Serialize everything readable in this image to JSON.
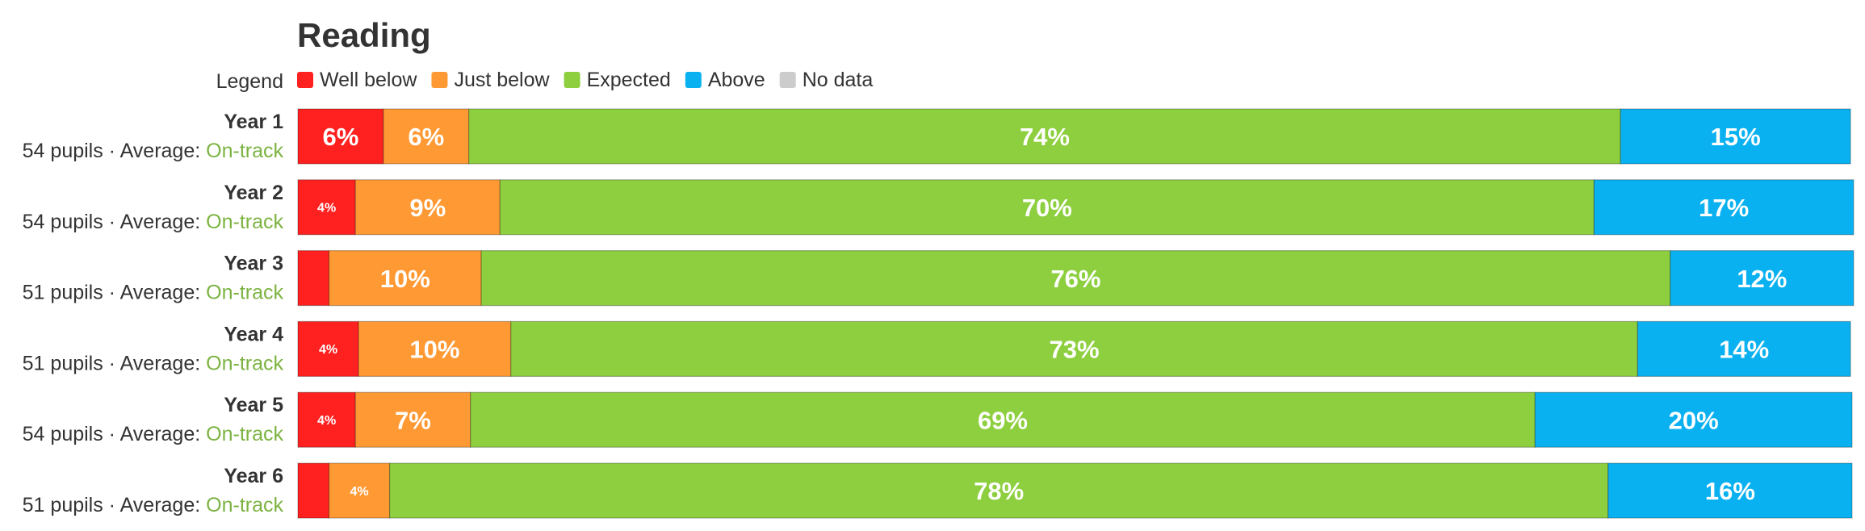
{
  "chart_data": {
    "type": "bar",
    "orientation": "horizontal",
    "stacked": true,
    "title": "Reading",
    "legend_label": "Legend",
    "legend_position": "top-left",
    "categories": [
      "Year 1",
      "Year 2",
      "Year 3",
      "Year 4",
      "Year 5",
      "Year 6"
    ],
    "row_meta": [
      {
        "pupils": "54 pupils",
        "average_label": "Average:",
        "average": "On-track"
      },
      {
        "pupils": "54 pupils",
        "average_label": "Average:",
        "average": "On-track"
      },
      {
        "pupils": "51 pupils",
        "average_label": "Average:",
        "average": "On-track"
      },
      {
        "pupils": "51 pupils",
        "average_label": "Average:",
        "average": "On-track"
      },
      {
        "pupils": "54 pupils",
        "average_label": "Average:",
        "average": "On-track"
      },
      {
        "pupils": "51 pupils",
        "average_label": "Average:",
        "average": "On-track"
      }
    ],
    "series": [
      {
        "name": "Well below",
        "color": "#ff2020",
        "values": [
          5.5,
          3.7,
          2,
          3.9,
          3.7,
          2
        ],
        "labels": [
          "6%",
          "4%",
          "",
          "4%",
          "4%",
          ""
        ]
      },
      {
        "name": "Just below",
        "color": "#ff9933",
        "values": [
          5.5,
          9.3,
          9.8,
          9.8,
          7.4,
          3.9
        ],
        "labels": [
          "6%",
          "9%",
          "10%",
          "10%",
          "7%",
          "4%"
        ]
      },
      {
        "name": "Expected",
        "color": "#8dcf3f",
        "values": [
          74.1,
          70.4,
          76.5,
          72.5,
          68.5,
          78.4
        ],
        "labels": [
          "74%",
          "70%",
          "76%",
          "73%",
          "69%",
          "78%"
        ]
      },
      {
        "name": "Above",
        "color": "#0ab1f0",
        "values": [
          14.8,
          16.7,
          11.8,
          13.7,
          20.4,
          15.7
        ],
        "labels": [
          "15%",
          "17%",
          "12%",
          "14%",
          "20%",
          "16%"
        ]
      },
      {
        "name": "No data",
        "color": "#cccccc",
        "values": [
          0,
          0,
          0,
          0,
          0,
          0
        ],
        "labels": [
          "",
          "",
          "",
          "",
          "",
          ""
        ]
      }
    ],
    "xlim": [
      0,
      100
    ],
    "grid": false
  },
  "colors": {
    "title": "#333333",
    "row_label": "#333333",
    "average_status": "#7cb342"
  },
  "separator": "·"
}
